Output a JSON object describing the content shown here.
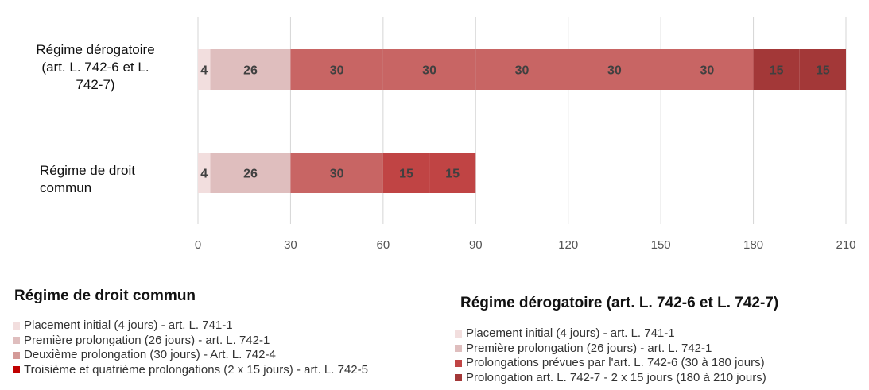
{
  "chart_data": {
    "type": "bar",
    "orientation": "horizontal",
    "stacked": true,
    "xlim": [
      0,
      210
    ],
    "x_ticks": [
      "0",
      "30",
      "60",
      "90",
      "120",
      "150",
      "180",
      "210"
    ],
    "grid": "vertical",
    "categories": [
      "Régime dérogatoire (art. L. 742-6 et L. 742-7)",
      "Régime de droit commun"
    ],
    "bars": [
      {
        "category": "Régime dérogatoire (art. L. 742-6 et L. 742-7)",
        "segments": [
          {
            "value": 4,
            "label": "4",
            "color": "#f2dede"
          },
          {
            "value": 26,
            "label": "26",
            "color": "#dfbebe"
          },
          {
            "value": 30,
            "label": "30",
            "color": "#c86564"
          },
          {
            "value": 30,
            "label": "30",
            "color": "#c86564"
          },
          {
            "value": 30,
            "label": "30",
            "color": "#c86564"
          },
          {
            "value": 30,
            "label": "30",
            "color": "#c86564"
          },
          {
            "value": 30,
            "label": "30",
            "color": "#c86564"
          },
          {
            "value": 15,
            "label": "15",
            "color": "#a33838"
          },
          {
            "value": 15,
            "label": "15",
            "color": "#a33838"
          }
        ]
      },
      {
        "category": "Régime de droit commun",
        "segments": [
          {
            "value": 4,
            "label": "4",
            "color": "#f2dede"
          },
          {
            "value": 26,
            "label": "26",
            "color": "#dfbebe"
          },
          {
            "value": 30,
            "label": "30",
            "color": "#c86564"
          },
          {
            "value": 15,
            "label": "15",
            "color": "#c04444"
          },
          {
            "value": 15,
            "label": "15",
            "color": "#c04444"
          }
        ]
      }
    ],
    "legends": [
      {
        "title": "Régime de droit commun",
        "entries": [
          {
            "label": "Placement initial (4 jours) - art. L. 741-1",
            "color": "#f2dede"
          },
          {
            "label": "Première prolongation (26 jours) - art. L. 742-1",
            "color": "#dfbebe"
          },
          {
            "label": "Deuxième prolongation (30 jours) - Art. L. 742-4",
            "color": "#d49a98"
          },
          {
            "label": "Troisième et quatrième prolongations (2 x 15 jours) - art. L. 742-5",
            "color": "#c00000"
          }
        ]
      },
      {
        "title": "Régime dérogatoire (art. L. 742-6 et L. 742-7)",
        "entries": [
          {
            "label": "Placement initial (4 jours) - art. L. 741-1",
            "color": "#f2dede"
          },
          {
            "label": "Première prolongation (26 jours) - art. L. 742-1",
            "color": "#dfbebe"
          },
          {
            "label": "Prolongations prévues par l'art. L. 742-6 (30 à 180 jours)",
            "color": "#c04444"
          },
          {
            "label": "Prolongation art. L. 742-7 - 2 x 15 jours (180 à 210 jours)",
            "color": "#a33838"
          }
        ]
      }
    ]
  }
}
